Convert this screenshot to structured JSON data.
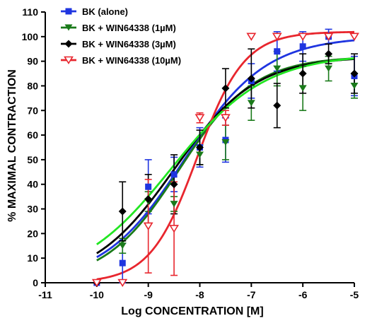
{
  "chart_data": {
    "type": "scatter",
    "xlabel": "Log CONCENTRATION [M]",
    "ylabel": "% MAXIMAL CONTRACTION",
    "xlim": [
      -11,
      -5
    ],
    "ylim": [
      0,
      110
    ],
    "xticks": [
      -11,
      -10,
      -9,
      -8,
      -7,
      -6,
      -5
    ],
    "yticks": [
      0,
      10,
      20,
      30,
      40,
      50,
      60,
      70,
      80,
      90,
      100,
      110
    ],
    "grid": false,
    "legend_position": "top-left",
    "series": [
      {
        "name": "BK (alone)",
        "color": "#1f35e0",
        "marker": "square",
        "x": [
          -10,
          -9.5,
          -9,
          -8.5,
          -8,
          -7.5,
          -7,
          -6.5,
          -6,
          -5.5,
          -5
        ],
        "y": [
          0,
          8,
          39,
          44,
          55,
          58,
          82,
          94,
          96,
          100,
          84
        ],
        "err": [
          0,
          8,
          11,
          7,
          8,
          9,
          7,
          8,
          6,
          3,
          8
        ],
        "fit": {
          "bottom": 0,
          "top": 100,
          "logEC50": -8.3,
          "hill": 0.55
        }
      },
      {
        "name": "BK + WIN64338 (1µM)",
        "color": "#1a7a1a",
        "marker": "triangle-down",
        "x": [
          -10,
          -9.5,
          -9,
          -8.5,
          -8,
          -7.5,
          -7,
          -6.5,
          -6,
          -5.5,
          -5
        ],
        "y": [
          0,
          15,
          33,
          32,
          52,
          57,
          73,
          87,
          79,
          87,
          80
        ],
        "err": [
          0,
          3,
          4,
          3,
          4,
          7,
          7,
          7,
          9,
          5,
          5
        ],
        "fit": {
          "bottom": 0,
          "top": 92,
          "logEC50": -8.4,
          "hill": 0.6
        }
      },
      {
        "name": "BK + WIN64338 (3µM)",
        "color": "#000000",
        "marker": "diamond",
        "x": [
          -10,
          -9.5,
          -9,
          -8.5,
          -8,
          -7.5,
          -7,
          -6.5,
          -6,
          -5.5,
          -5
        ],
        "y": [
          0,
          29,
          34,
          40,
          55,
          79,
          83,
          72,
          85,
          93,
          85
        ],
        "err": [
          0,
          12,
          10,
          12,
          7,
          8,
          12,
          9,
          8,
          4,
          8
        ],
        "fit": {
          "bottom": 0,
          "top": 92,
          "logEC50": -8.5,
          "hill": 0.55
        }
      },
      {
        "name": "BK + WIN64338 (10µM)",
        "color": "#e8262e",
        "marker": "triangle-down-open",
        "x": [
          -10,
          -9.5,
          -9,
          -8.5,
          -8,
          -7.5,
          -7,
          -6.5,
          -6,
          -5.5,
          -5
        ],
        "y": [
          0,
          0,
          23,
          22,
          67,
          67,
          100,
          100,
          100,
          100,
          100
        ],
        "err": [
          0,
          0,
          19,
          19,
          2,
          3,
          0,
          0,
          0,
          0,
          0
        ],
        "fit": {
          "bottom": 0,
          "top": 102,
          "logEC50": -8.05,
          "hill": 0.95
        }
      }
    ],
    "fit_only_series": [
      {
        "color": "#22e622",
        "fit": {
          "bottom": 0,
          "top": 93,
          "logEC50": -8.55,
          "hill": 0.48
        }
      }
    ]
  }
}
